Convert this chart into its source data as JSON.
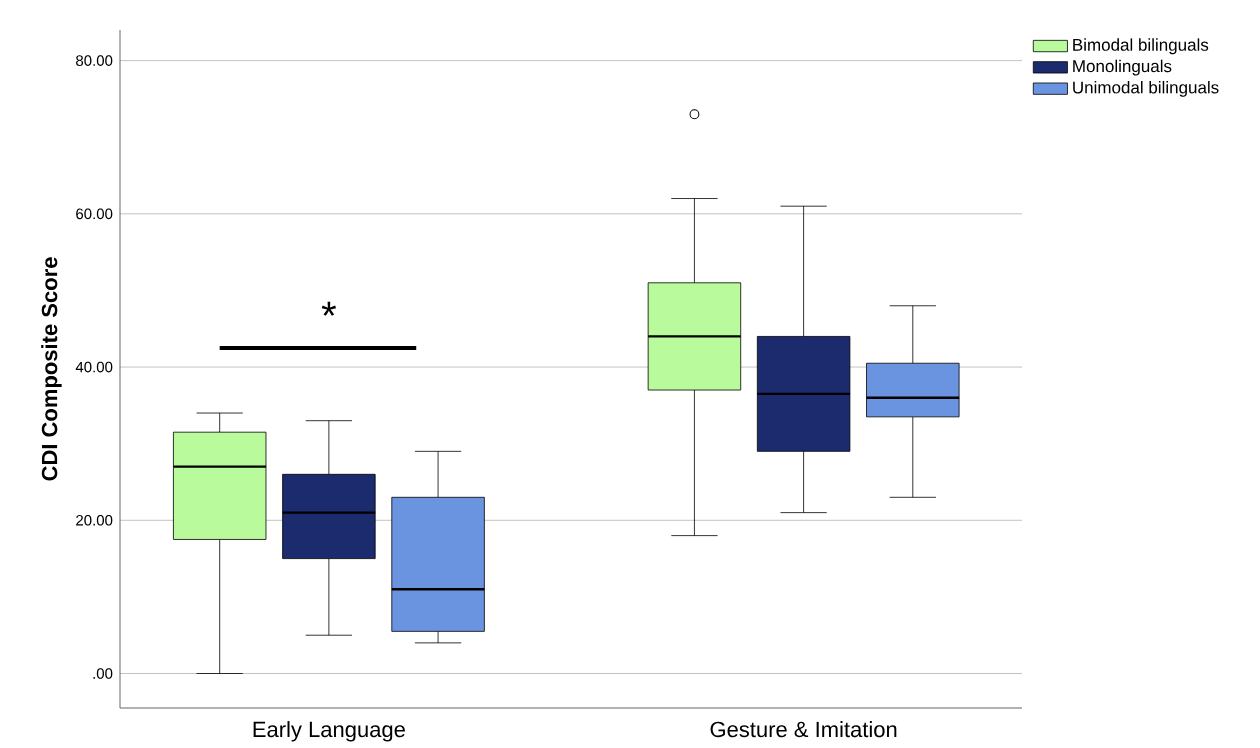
{
  "chart_data": {
    "type": "box",
    "ylabel": "CDI Composite Score",
    "categories": [
      "Early Language",
      "Gesture & Imitation"
    ],
    "series": [
      {
        "name": "Bimodal bilinguals",
        "color": "#b9fb9c",
        "boxes": [
          {
            "low": 0,
            "q1": 17.5,
            "median": 27,
            "q3": 31.5,
            "high": 34
          },
          {
            "low": 18,
            "q1": 37,
            "median": 44,
            "q3": 51,
            "high": 62,
            "outliers": [
              73
            ]
          }
        ]
      },
      {
        "name": "Monolinguals",
        "color": "#1c2a6e",
        "boxes": [
          {
            "low": 5,
            "q1": 15,
            "median": 21,
            "q3": 26,
            "high": 33
          },
          {
            "low": 21,
            "q1": 29,
            "median": 36.5,
            "q3": 44,
            "high": 61
          }
        ]
      },
      {
        "name": "Unimodal bilinguals",
        "color": "#6b94e0",
        "boxes": [
          {
            "low": 4,
            "q1": 5.5,
            "median": 11,
            "q3": 23,
            "high": 29
          },
          {
            "low": 23,
            "q1": 33.5,
            "median": 36,
            "q3": 40.5,
            "high": 48
          }
        ]
      }
    ],
    "ylim": [
      -4.5,
      84
    ],
    "yticks": [
      {
        "value": 0,
        "label": ".00"
      },
      {
        "value": 20,
        "label": "20.00"
      },
      {
        "value": 40,
        "label": "40.00"
      },
      {
        "value": 60,
        "label": "60.00"
      },
      {
        "value": 80,
        "label": "80.00"
      }
    ],
    "grid": "y",
    "legend": "top right",
    "annotations": [
      "*"
    ]
  }
}
